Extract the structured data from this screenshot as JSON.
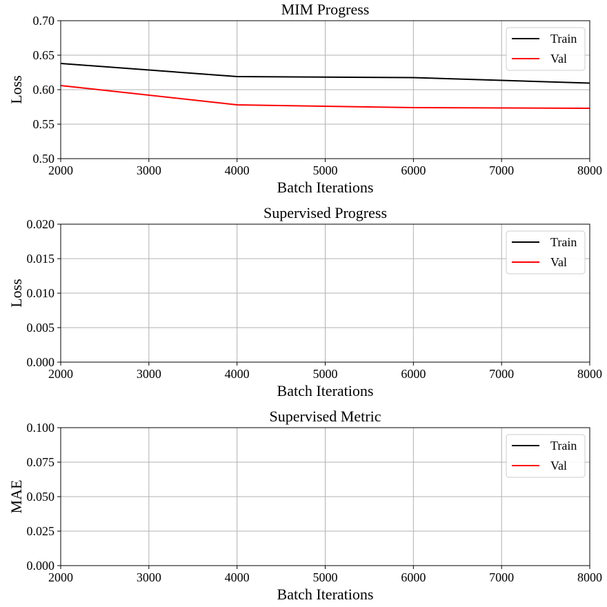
{
  "chart_data": [
    {
      "type": "line",
      "title": "MIM Progress",
      "xlabel": "Batch Iterations",
      "ylabel": "Loss",
      "xlim": [
        2000,
        8000
      ],
      "ylim": [
        0.5,
        0.7
      ],
      "xticks": [
        "2000",
        "3000",
        "4000",
        "5000",
        "6000",
        "7000",
        "8000"
      ],
      "yticks": [
        "0.50",
        "0.55",
        "0.60",
        "0.65",
        "0.70"
      ],
      "grid": true,
      "legend": "top-right",
      "series": [
        {
          "name": "Train",
          "color": "#000000",
          "x": [
            2000,
            4000,
            6000,
            8000
          ],
          "y": [
            0.638,
            0.619,
            0.6175,
            0.6095
          ]
        },
        {
          "name": "Val",
          "color": "#ff0000",
          "x": [
            2000,
            4000,
            6000,
            8000
          ],
          "y": [
            0.606,
            0.578,
            0.574,
            0.573
          ]
        }
      ]
    },
    {
      "type": "line",
      "title": "Supervised Progress",
      "xlabel": "Batch Iterations",
      "ylabel": "Loss",
      "xlim": [
        2000,
        8000
      ],
      "ylim": [
        0,
        0.02
      ],
      "xticks": [
        "2000",
        "3000",
        "4000",
        "5000",
        "6000",
        "7000",
        "8000"
      ],
      "yticks": [
        "0.000",
        "0.005",
        "0.010",
        "0.015",
        "0.020"
      ],
      "grid": true,
      "legend": "top-right",
      "series": [
        {
          "name": "Train",
          "color": "#000000",
          "x": [],
          "y": []
        },
        {
          "name": "Val",
          "color": "#ff0000",
          "x": [],
          "y": []
        }
      ]
    },
    {
      "type": "line",
      "title": "Supervised Metric",
      "xlabel": "Batch Iterations",
      "ylabel": "MAE",
      "xlim": [
        2000,
        8000
      ],
      "ylim": [
        0,
        0.1
      ],
      "xticks": [
        "2000",
        "3000",
        "4000",
        "5000",
        "6000",
        "7000",
        "8000"
      ],
      "yticks": [
        "0.000",
        "0.025",
        "0.050",
        "0.075",
        "0.100"
      ],
      "grid": true,
      "legend": "top-right",
      "series": [
        {
          "name": "Train",
          "color": "#000000",
          "x": [],
          "y": []
        },
        {
          "name": "Val",
          "color": "#ff0000",
          "x": [],
          "y": []
        }
      ]
    }
  ]
}
